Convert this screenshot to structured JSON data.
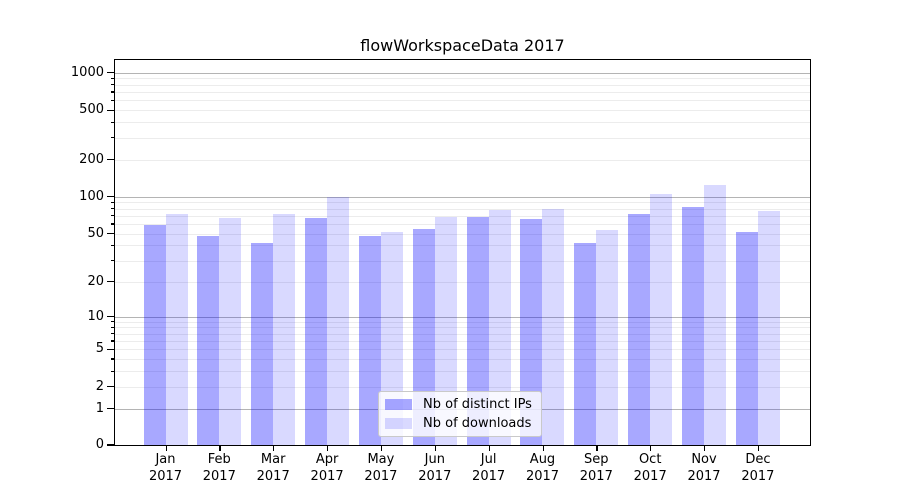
{
  "chart_data": {
    "type": "bar",
    "title": "flowWorkspaceData 2017",
    "year_label": "2017",
    "categories": [
      "Jan",
      "Feb",
      "Mar",
      "Apr",
      "May",
      "Jun",
      "Jul",
      "Aug",
      "Sep",
      "Oct",
      "Nov",
      "Dec"
    ],
    "series": [
      {
        "name": "Nb of distinct IPs",
        "color": "#0000FF",
        "opacity": 0.34,
        "values": [
          59,
          48,
          42,
          67,
          48,
          55,
          68,
          66,
          42,
          73,
          82,
          52
        ]
      },
      {
        "name": "Nb of downloads",
        "color": "#0000FF",
        "opacity": 0.15,
        "values": [
          72,
          67,
          72,
          100,
          52,
          68,
          78,
          80,
          54,
          105,
          124,
          76
        ]
      }
    ],
    "y_axis": {
      "scale": "log1p",
      "tick_labels": [
        "0",
        "1",
        "2",
        "5",
        "10",
        "20",
        "50",
        "100",
        "200",
        "500",
        "1000"
      ],
      "major_ticks": [
        1,
        10,
        100,
        1000
      ],
      "ylim": [
        0,
        1259
      ]
    },
    "legend": {
      "position": "lower-center"
    },
    "grid": {
      "enabled": true,
      "major_color": "#b4b4b4",
      "minor_color": "#ececec"
    },
    "colors": {
      "background": "#ffffff",
      "spine": "#000000",
      "text": "#000000"
    }
  }
}
